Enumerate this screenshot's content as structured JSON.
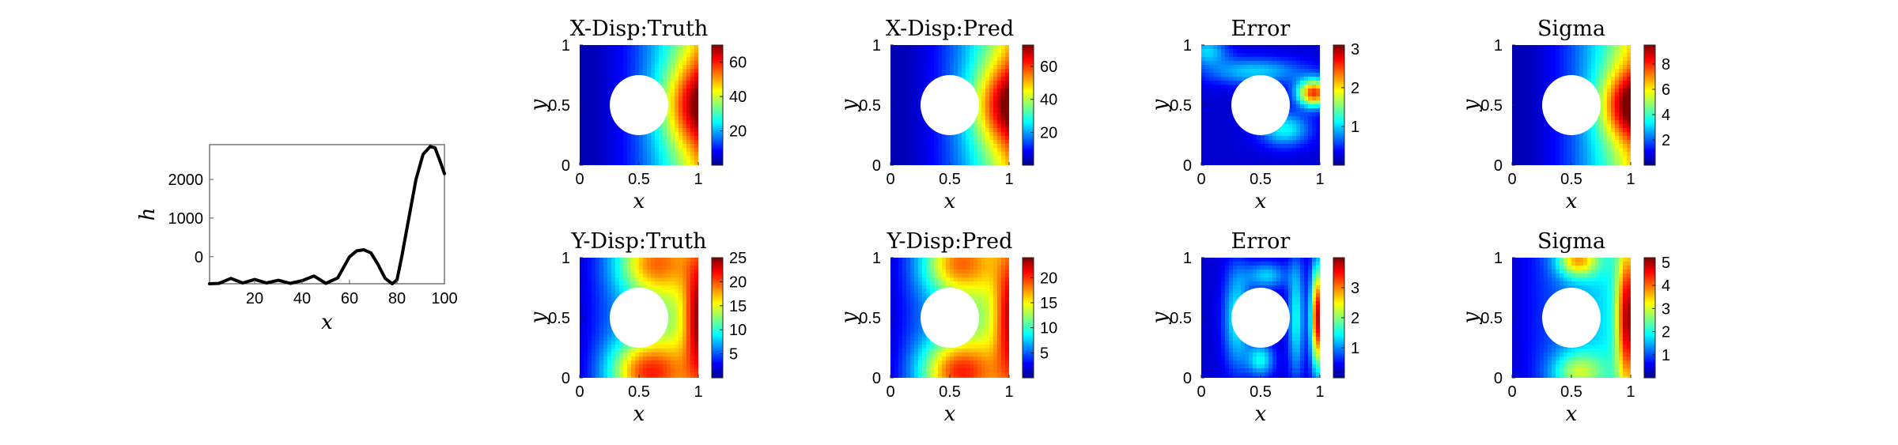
{
  "chart_data": [
    {
      "type": "line",
      "xlabel": "x",
      "ylabel": "h",
      "xlim": [
        1,
        100
      ],
      "ylim": [
        -700,
        2900
      ],
      "xticks": [
        "20",
        "40",
        "60",
        "80",
        "100"
      ],
      "yticks": [
        "0",
        "1000",
        "2000"
      ],
      "grid": false,
      "x": [
        1,
        5,
        10,
        15,
        20,
        25,
        30,
        35,
        40,
        45,
        50,
        55,
        60,
        63,
        66,
        69,
        72,
        75,
        78,
        80,
        82,
        85,
        88,
        91,
        94,
        96,
        98,
        100
      ],
      "y": [
        -700,
        -690,
        -560,
        -680,
        -590,
        -680,
        -610,
        -690,
        -620,
        -500,
        -690,
        -550,
        0,
        150,
        180,
        100,
        -200,
        -560,
        -700,
        -600,
        0,
        1000,
        2000,
        2650,
        2850,
        2820,
        2500,
        2150
      ]
    },
    {
      "type": "heatmap",
      "title": "X-Disp:Truth",
      "xlabel": "x",
      "ylabel": "y",
      "xticks": [
        "0",
        "0.5",
        "1"
      ],
      "yticks": [
        "0",
        "0.5",
        "1"
      ],
      "colormap": "jet",
      "field": "x-gradient, hot lobe at right-center",
      "clim": [
        0,
        70
      ],
      "colorbar_ticks": [
        "20",
        "40",
        "60"
      ]
    },
    {
      "type": "heatmap",
      "title": "X-Disp:Pred",
      "xlabel": "x",
      "ylabel": "y",
      "xticks": [
        "0",
        "0.5",
        "1"
      ],
      "yticks": [
        "0",
        "0.5",
        "1"
      ],
      "colormap": "jet",
      "field": "x-gradient, hot lobe at right-center",
      "clim": [
        0,
        73
      ],
      "colorbar_ticks": [
        "20",
        "40",
        "60"
      ]
    },
    {
      "type": "heatmap",
      "title": "Error",
      "xlabel": "x",
      "ylabel": "y",
      "xticks": [
        "0",
        "0.5",
        "1"
      ],
      "yticks": [
        "0",
        "0.5",
        "1"
      ],
      "colormap": "jet",
      "field": "mostly low with bands around hole, max at right edge",
      "clim": [
        0,
        3.1
      ],
      "colorbar_ticks": [
        "1",
        "2",
        "3"
      ]
    },
    {
      "type": "heatmap",
      "title": "Sigma",
      "xlabel": "x",
      "ylabel": "y",
      "xticks": [
        "0",
        "0.5",
        "1"
      ],
      "yticks": [
        "0",
        "0.5",
        "1"
      ],
      "colormap": "jet",
      "field": "x-gradient, hot lobe at right-center",
      "clim": [
        0,
        9.5
      ],
      "colorbar_ticks": [
        "2",
        "4",
        "6",
        "8"
      ]
    },
    {
      "type": "heatmap",
      "title": "Y-Disp:Truth",
      "xlabel": "x",
      "ylabel": "y",
      "xticks": [
        "0",
        "0.5",
        "1"
      ],
      "yticks": [
        "0",
        "0.5",
        "1"
      ],
      "colormap": "jet",
      "field": "blue left, hot lobes above and below hole and at right edge",
      "clim": [
        0,
        25
      ],
      "colorbar_ticks": [
        "5",
        "10",
        "15",
        "20",
        "25"
      ]
    },
    {
      "type": "heatmap",
      "title": "Y-Disp:Pred",
      "xlabel": "x",
      "ylabel": "y",
      "xticks": [
        "0",
        "0.5",
        "1"
      ],
      "yticks": [
        "0",
        "0.5",
        "1"
      ],
      "colormap": "jet",
      "field": "blue left, hot lobes above and below hole and at right edge",
      "clim": [
        0,
        24
      ],
      "colorbar_ticks": [
        "5",
        "10",
        "15",
        "20"
      ]
    },
    {
      "type": "heatmap",
      "title": "Error",
      "xlabel": "x",
      "ylabel": "y",
      "xticks": [
        "0",
        "0.5",
        "1"
      ],
      "yticks": [
        "0",
        "0.5",
        "1"
      ],
      "colormap": "jet",
      "field": "low overall, spots near hole, max at right edge",
      "clim": [
        0,
        4
      ],
      "colorbar_ticks": [
        "1",
        "2",
        "3"
      ]
    },
    {
      "type": "heatmap",
      "title": "Sigma",
      "xlabel": "x",
      "ylabel": "y",
      "xticks": [
        "0",
        "0.5",
        "1"
      ],
      "yticks": [
        "0",
        "0.5",
        "1"
      ],
      "colormap": "jet",
      "field": "blue left, moderate above/below hole, max at right edge",
      "clim": [
        0,
        5.2
      ],
      "colorbar_ticks": [
        "1",
        "2",
        "3",
        "4",
        "5"
      ]
    }
  ]
}
